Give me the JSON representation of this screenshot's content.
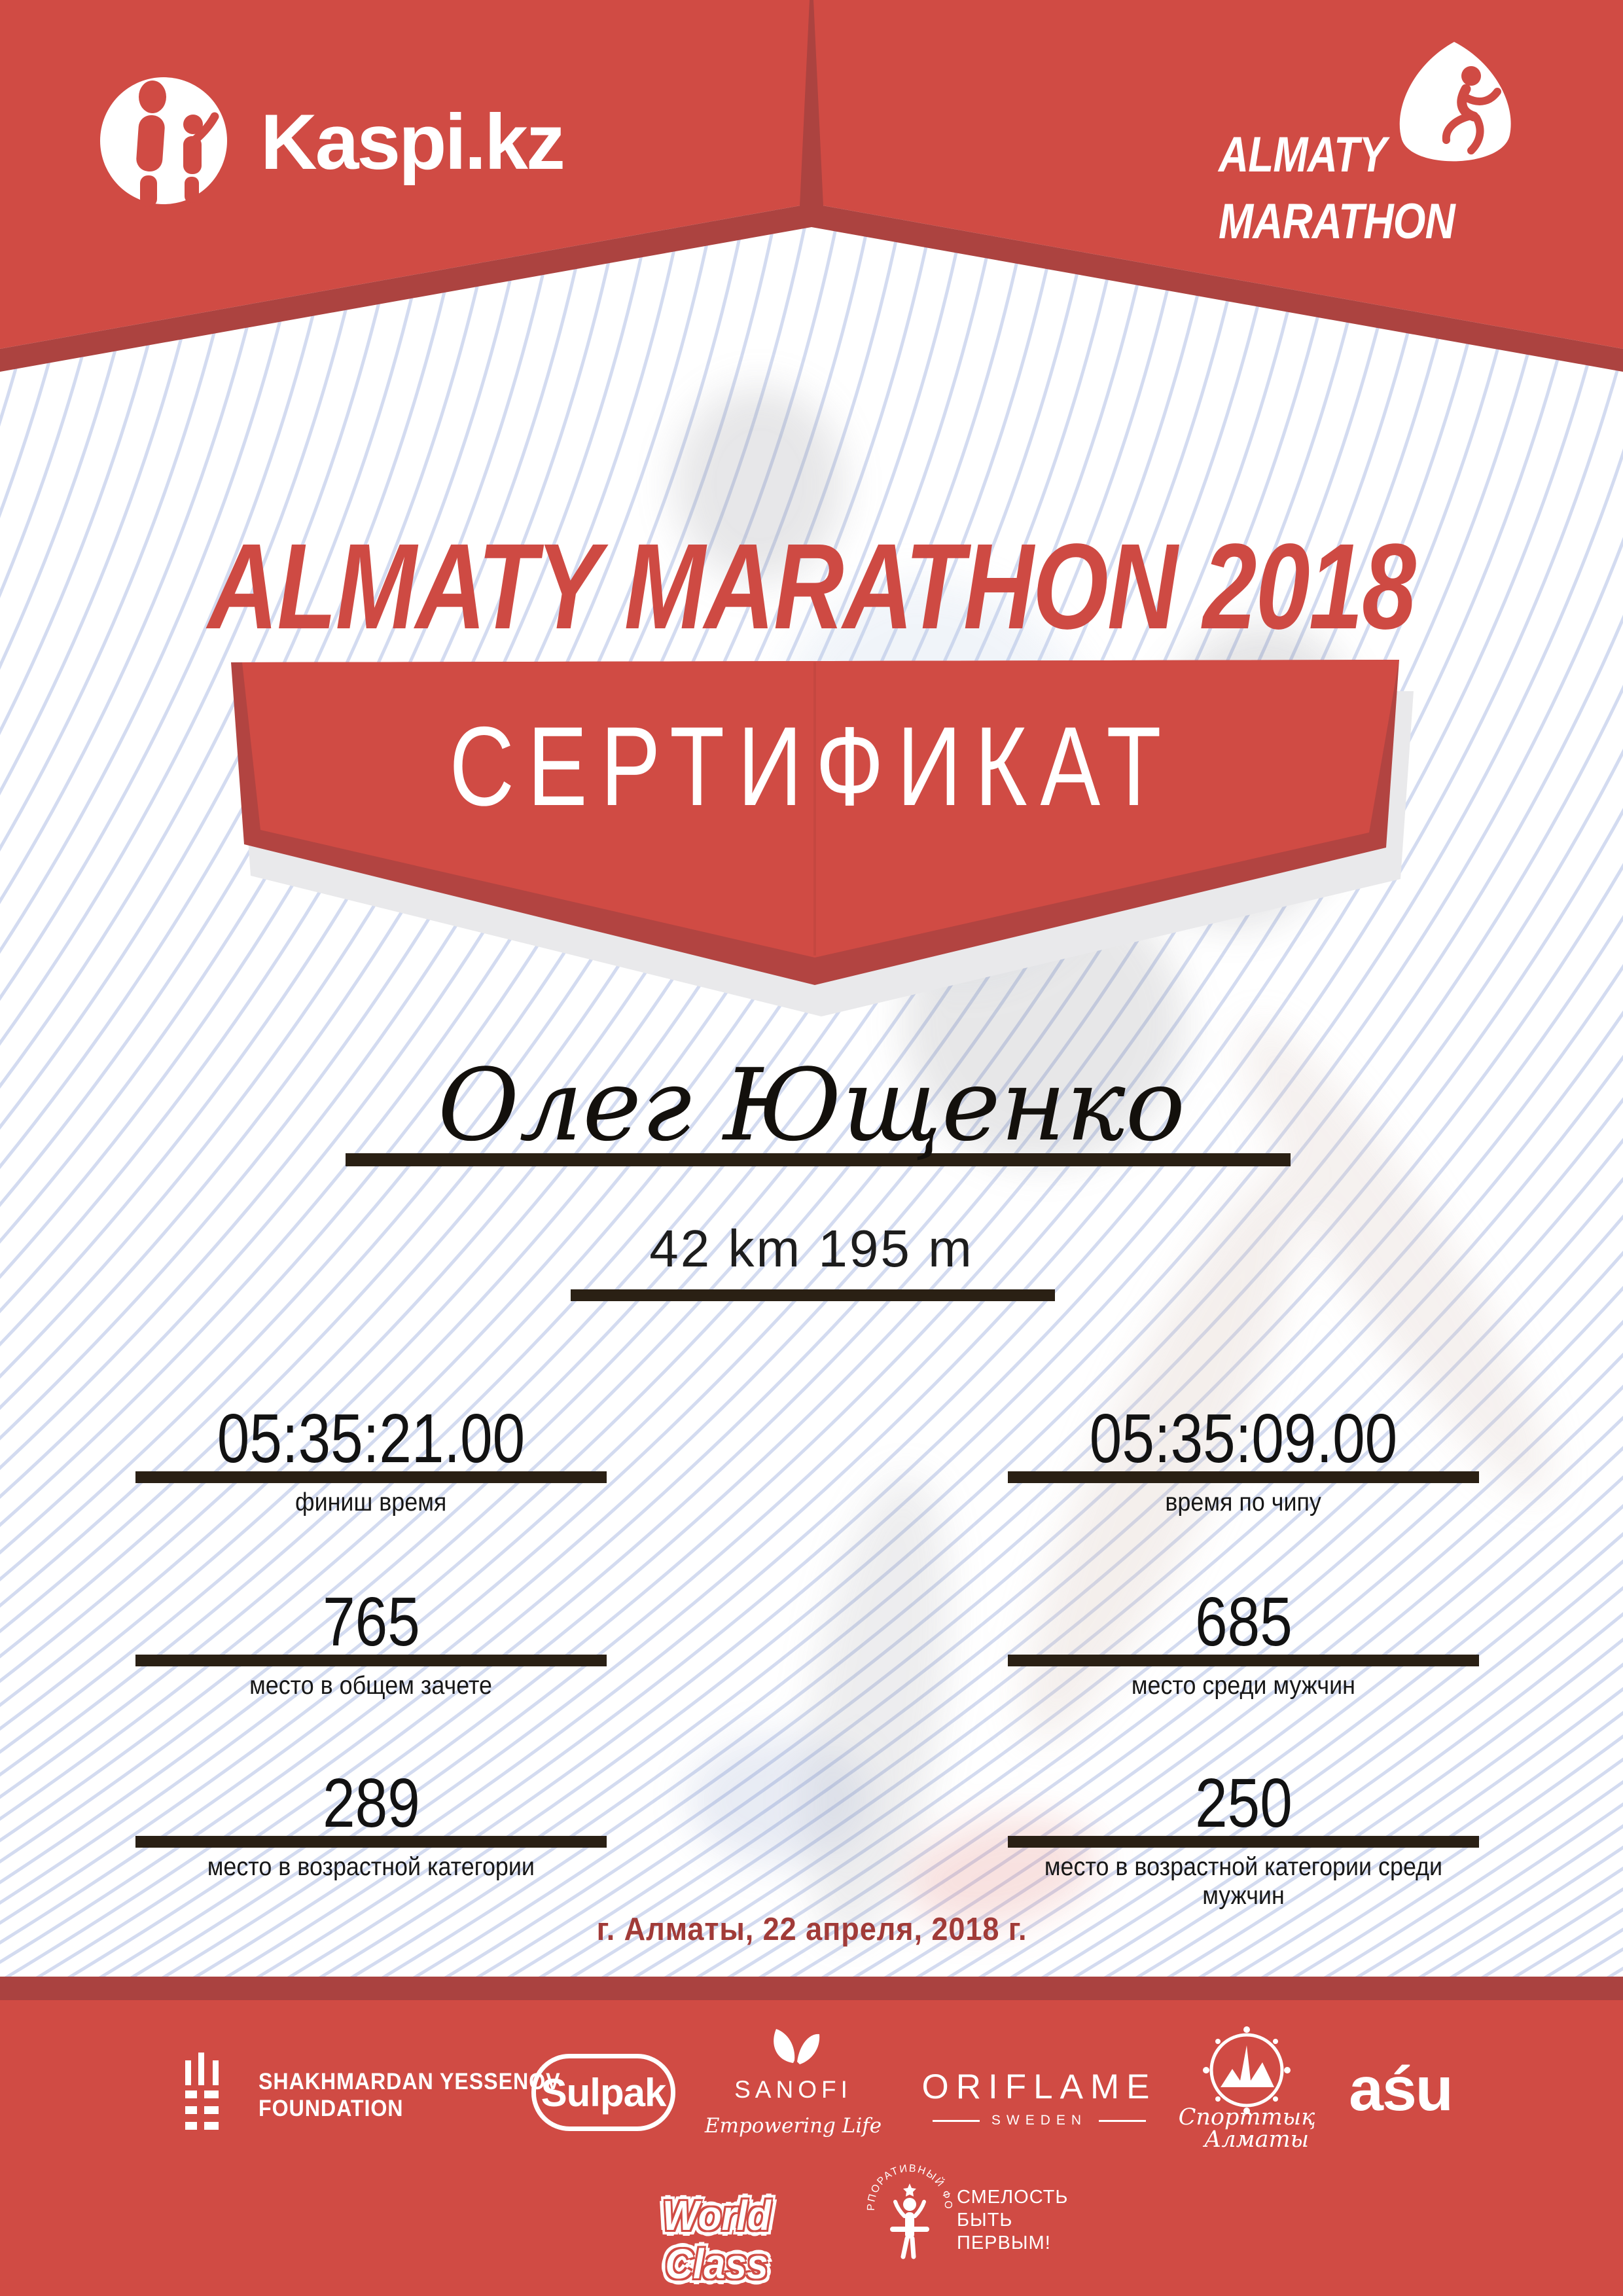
{
  "certificate": {
    "event_title": "ALMATY MARATHON 2018",
    "doc_type": "СЕРТИФИКАТ",
    "participant_name": "Олег Ющенко",
    "distance": "42 km 195 m",
    "date_location": "г. Алматы, 22 апреля, 2018 г."
  },
  "header": {
    "kaspi_logo": "Kaspi.kz",
    "marathon_logo": {
      "line1": "ALMATY",
      "line2": "MARATHON"
    }
  },
  "stats": [
    {
      "value": "05:35:21.00",
      "label": "финиш время"
    },
    {
      "value": "05:35:09.00",
      "label": "время по чипу"
    },
    {
      "value": "765",
      "label": "место в общем зачете"
    },
    {
      "value": "685",
      "label": "место среди мужчин"
    },
    {
      "value": "289",
      "label": "место в возрастной категории"
    },
    {
      "value": "250",
      "label": "место в возрастной категории среди мужчин"
    }
  ],
  "footer": {
    "yessenov": {
      "line1": "SHAKHMARDAN YESSENOV",
      "line2": "FOUNDATION"
    },
    "sulpak": "Sulpak",
    "sanofi": {
      "name": "SANOFI",
      "tagline": "Empowering Life"
    },
    "oriflame": {
      "name": "ORIFLAME",
      "country": "SWEDEN"
    },
    "sporttyk": {
      "line1": "Спорттық",
      "line2": "Алматы"
    },
    "asu": "aśu",
    "worldclass": "World Class",
    "fund": {
      "ring_text": "КОРПОРАТИВНЫЙ ФОНД",
      "slogan1": "СМЕЛОСТЬ",
      "slogan2": "БЫТЬ",
      "slogan3": "ПЕРВЫМ!"
    }
  },
  "colors": {
    "main_red": "#D04B44",
    "dark_red": "#AC4340",
    "date_red": "#A13B38",
    "underline": "#2A2014",
    "stripe": "#C8D2EC"
  }
}
